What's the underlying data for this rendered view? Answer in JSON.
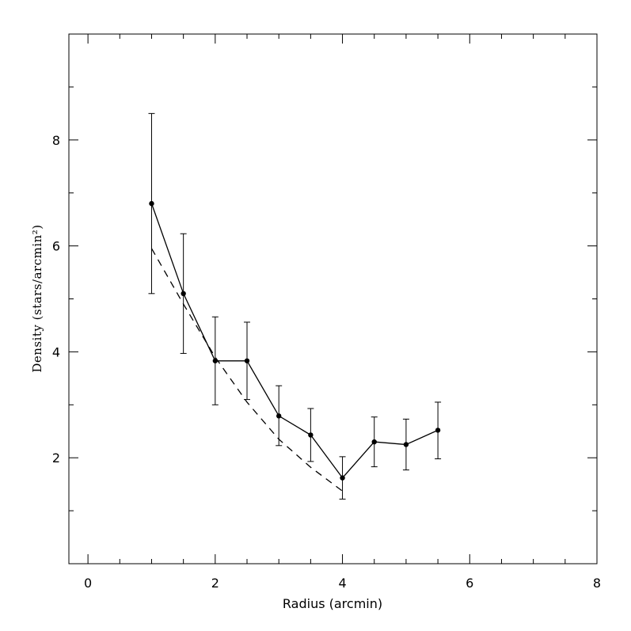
{
  "chart_data": {
    "type": "line",
    "xlabel": "Radius (arcmin)",
    "ylabel": "Density (stars/arcmin²)",
    "xlim": [
      -0.3,
      8
    ],
    "ylim": [
      0,
      10
    ],
    "x_tick_labels": [
      "0",
      "2",
      "4",
      "6",
      "8"
    ],
    "y_tick_labels": [
      "2",
      "4",
      "6",
      "8"
    ],
    "x_ticks": [
      0,
      2,
      4,
      6,
      8
    ],
    "y_ticks": [
      2,
      4,
      6,
      8
    ],
    "x_minor_step": 0.5,
    "y_minor_step": 1,
    "grid": false,
    "series": [
      {
        "style": "solid-with-points-and-errorbars",
        "x": [
          1.0,
          1.5,
          2.0,
          2.5,
          3.0,
          3.5,
          4.0,
          4.5,
          5.0,
          5.5
        ],
        "y": [
          6.8,
          5.1,
          3.83,
          3.83,
          2.79,
          2.43,
          1.62,
          2.3,
          2.25,
          2.52
        ],
        "err_low": [
          5.1,
          3.97,
          3.0,
          3.1,
          2.23,
          1.93,
          1.22,
          1.83,
          1.77,
          1.98
        ],
        "err_high": [
          8.5,
          6.23,
          4.66,
          4.56,
          3.36,
          2.93,
          2.02,
          2.77,
          2.73,
          3.05
        ]
      },
      {
        "style": "dashed",
        "x": [
          1.0,
          1.5,
          2.0,
          2.5,
          3.0,
          3.5,
          4.0
        ],
        "y": [
          5.95,
          4.9,
          3.9,
          3.05,
          2.35,
          1.82,
          1.37
        ]
      }
    ]
  }
}
